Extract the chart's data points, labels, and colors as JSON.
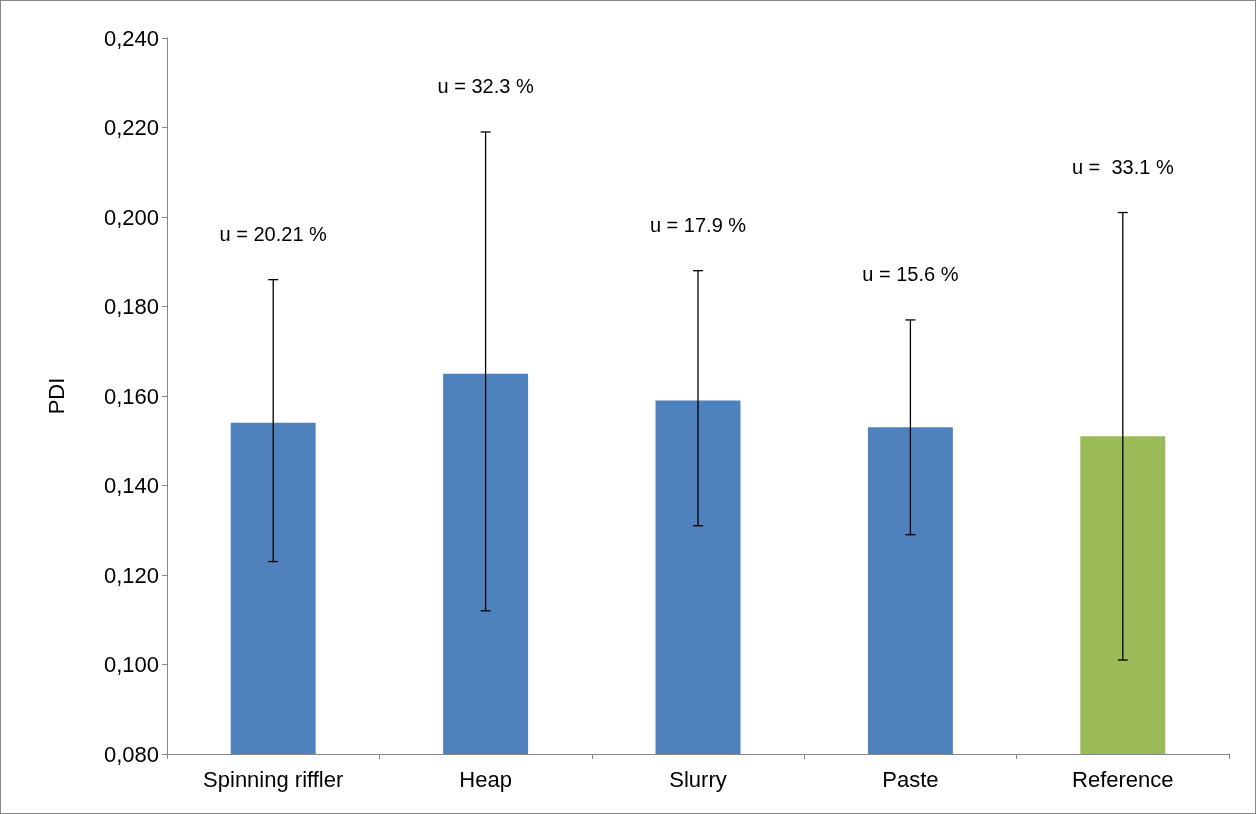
{
  "chart_data": {
    "type": "bar",
    "ylabel": "PDI",
    "categories": [
      "Spinning riffler",
      "Heap",
      "Slurry",
      "Paste",
      "Reference"
    ],
    "values": [
      0.154,
      0.165,
      0.159,
      0.153,
      0.151
    ],
    "colors": [
      "#4f81bd",
      "#4f81bd",
      "#4f81bd",
      "#4f81bd",
      "#9bbb59"
    ],
    "errors": [
      [
        0.123,
        0.186
      ],
      [
        0.112,
        0.219
      ],
      [
        0.131,
        0.188
      ],
      [
        0.129,
        0.177
      ],
      [
        0.101,
        0.201
      ]
    ],
    "ylim": [
      0.08,
      0.24
    ],
    "yticks": [
      {
        "value": 0.08,
        "label": "0,080"
      },
      {
        "value": 0.1,
        "label": "0,100"
      },
      {
        "value": 0.12,
        "label": "0,120"
      },
      {
        "value": 0.14,
        "label": "0,140"
      },
      {
        "value": 0.16,
        "label": "0,160"
      },
      {
        "value": 0.18,
        "label": "0,180"
      },
      {
        "value": 0.2,
        "label": "0,200"
      },
      {
        "value": 0.22,
        "label": "0,220"
      },
      {
        "value": 0.24,
        "label": "0,240"
      }
    ],
    "grid": false,
    "annotations": [
      "u = 20.21 %",
      "u = 32.3 %",
      "u = 17.9 %",
      "u = 15.6 %",
      "u =  33.1 %"
    ]
  }
}
